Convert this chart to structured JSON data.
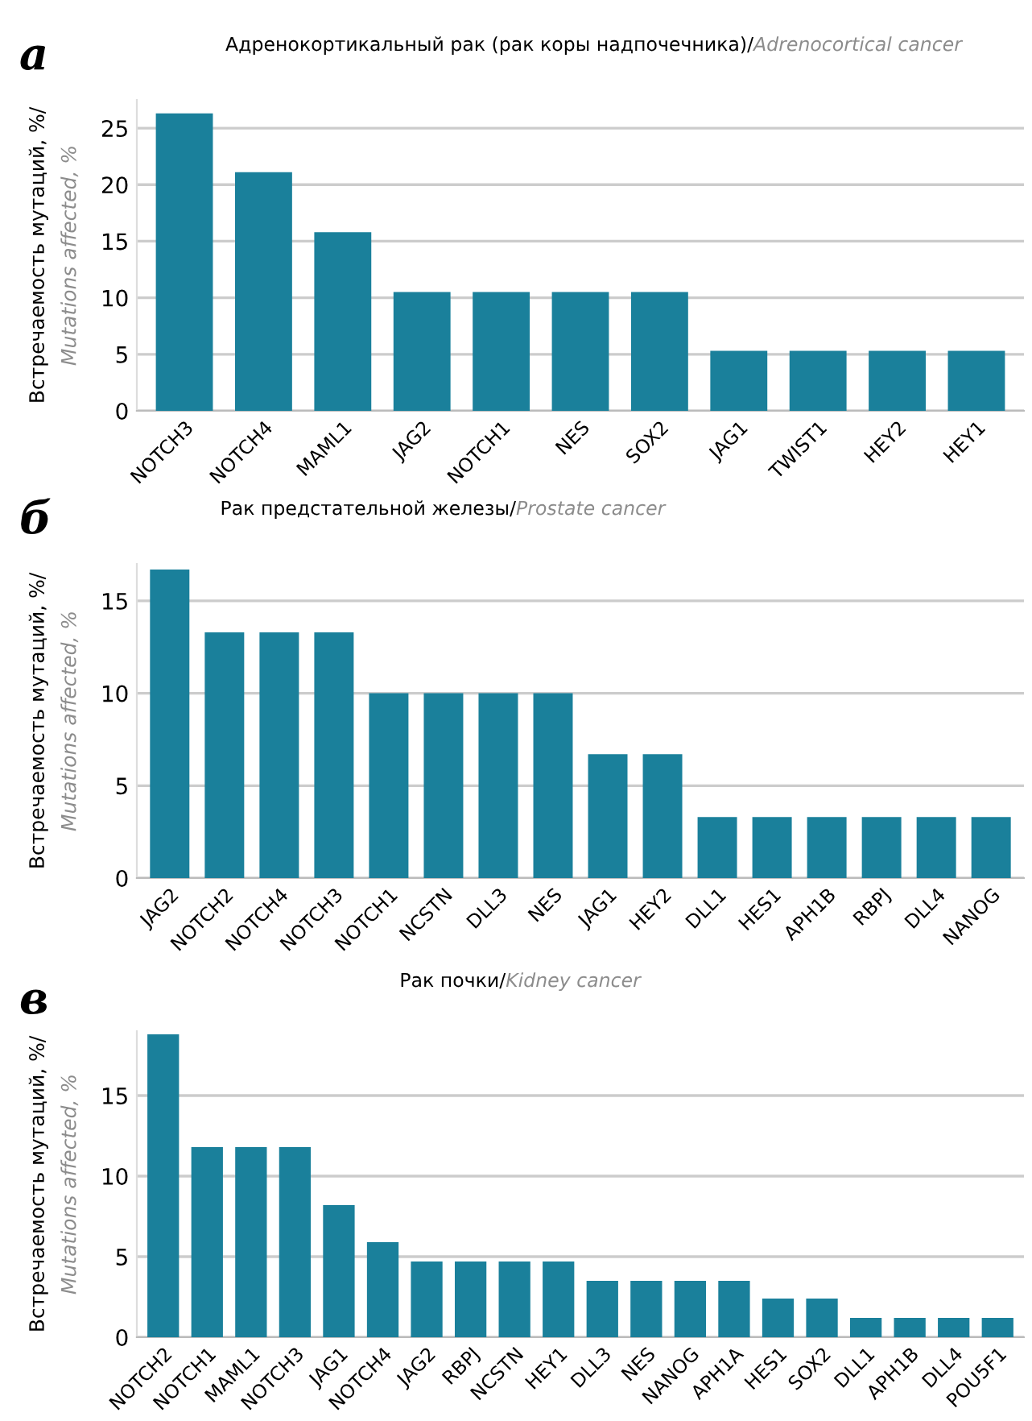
{
  "chart_data": [
    {
      "type": "bar",
      "title": "Адренокортикальный рак (рак коры надпочечника)/",
      "subtitle": "Adrenocortical cancer",
      "ylabel": "Встречаемость мутаций, %/",
      "annotations": [
        "а",
        "Mutations affected, %"
      ],
      "categories": [
        "NOTCH3",
        "NOTCH4",
        "MAML1",
        "JAG2",
        "NOTCH1",
        "NES",
        "SOX2",
        "JAG1",
        "TWIST1",
        "HEY2",
        "HEY1"
      ],
      "values": [
        26.3,
        21.1,
        15.8,
        10.5,
        10.5,
        10.5,
        10.5,
        5.3,
        5.3,
        5.3,
        5.3
      ],
      "color": "#1a809b",
      "ylim": [
        0,
        27.5
      ],
      "yticks": [
        0,
        5,
        10,
        15,
        20,
        25
      ],
      "grid": "y"
    },
    {
      "type": "bar",
      "title": "Рак предстательной железы/",
      "subtitle": "Prostate cancer",
      "ylabel": "Встречаемость мутаций, %/",
      "annotations": [
        "б",
        "Mutations affected, %"
      ],
      "categories": [
        "JAG2",
        "NOTCH2",
        "NOTCH4",
        "NOTCH3",
        "NOTCH1",
        "NCSTN",
        "DLL3",
        "NES",
        "JAG1",
        "HEY2",
        "DLL1",
        "HES1",
        "APH1B",
        "RBPJ",
        "DLL4",
        "NANOG"
      ],
      "values": [
        16.7,
        13.3,
        13.3,
        13.3,
        10,
        10,
        10,
        10,
        6.7,
        6.7,
        3.3,
        3.3,
        3.3,
        3.3,
        3.3,
        3.3
      ],
      "color": "#1a809b",
      "ylim": [
        0,
        17
      ],
      "yticks": [
        0,
        5,
        10,
        15
      ],
      "grid": "y"
    },
    {
      "type": "bar",
      "title": "Рак почки/",
      "subtitle": "Kidney cancer",
      "ylabel": "Встречаемость мутаций, %/",
      "annotations": [
        "в",
        "Mutations affected, %"
      ],
      "categories": [
        "NOTCH2",
        "NOTCH1",
        "MAML1",
        "NOTCH3",
        "JAG1",
        "NOTCH4",
        "JAG2",
        "RBPJ",
        "NCSTN",
        "HEY1",
        "DLL3",
        "NES",
        "NANOG",
        "APH1A",
        "HES1",
        "SOX2",
        "DLL1",
        "APH1B",
        "DLL4",
        "POU5F1"
      ],
      "values": [
        18.8,
        11.8,
        11.8,
        11.8,
        8.2,
        5.9,
        4.7,
        4.7,
        4.7,
        4.7,
        3.5,
        3.5,
        3.5,
        3.5,
        2.4,
        2.4,
        1.2,
        1.2,
        1.2,
        1.2
      ],
      "color": "#1a809b",
      "ylim": [
        0,
        19
      ],
      "yticks": [
        0,
        5,
        10,
        15
      ],
      "grid": "y"
    }
  ]
}
